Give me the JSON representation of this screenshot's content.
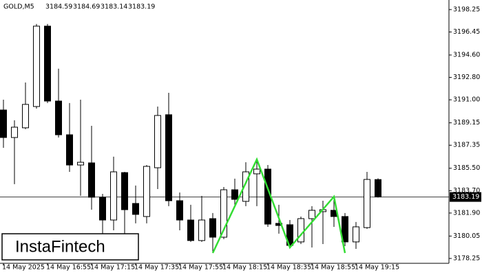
{
  "chart_data": {
    "type": "candlestick",
    "symbol": "GOLD,M5",
    "categories": [
      "14 May 2025",
      null,
      null,
      null,
      "14 May 16:55",
      null,
      null,
      null,
      "14 May 17:15",
      null,
      null,
      null,
      "14 May 17:35",
      null,
      null,
      null,
      "14 May 17:55",
      null,
      null,
      null,
      "14 May 18:15",
      null,
      null,
      null,
      "14 May 18:35",
      null,
      null,
      null,
      "14 May 18:55",
      null,
      null,
      null,
      "14 May 19:15",
      null,
      null
    ],
    "open": [
      3190.18,
      3187.97,
      3188.75,
      3190.46,
      3196.92,
      3190.9,
      3188.19,
      3185.76,
      3185.93,
      3183.17,
      3181.34,
      3185.15,
      3182.67,
      3181.62,
      3185.54,
      3189.8,
      3182.89,
      3181.34,
      3179.69,
      3181.45,
      3179.96,
      3183.77,
      3182.84,
      3185.05,
      3185.43,
      3181.07,
      3180.96,
      3179.58,
      3181.45,
      3182.01,
      3182.12,
      3181.62,
      3179.58,
      3180.73,
      3184.59
    ],
    "high": [
      3191.01,
      3189.35,
      3192.39,
      3197.09,
      3197.09,
      3193.5,
      3190.74,
      3191.01,
      3188.91,
      3183.44,
      3186.43,
      3185.21,
      3184.11,
      3185.76,
      3190.46,
      3191.56,
      3183.55,
      3182.56,
      3183.28,
      3181.9,
      3183.99,
      3184.66,
      3185.98,
      3186.21,
      3185.76,
      3182.56,
      3181.34,
      3181.62,
      3182.45,
      3182.89,
      3183.22,
      3181.9,
      3181.18,
      3185.21,
      3184.69
    ],
    "low": [
      3187.14,
      3184.22,
      3188.64,
      3190.29,
      3190.74,
      3187.97,
      3185.21,
      3183.28,
      3182.17,
      3180.24,
      3180.51,
      3180.24,
      3181.07,
      3181.07,
      3183.83,
      3182.45,
      3180.51,
      3179.58,
      3179.58,
      3178.69,
      3179.8,
      3182.45,
      3182.45,
      3182.45,
      3180.79,
      3180.24,
      3179.13,
      3179.41,
      3179.13,
      3179.41,
      3180.79,
      3179.24,
      3179.02,
      3180.63,
      3183.14
    ],
    "close": [
      3187.97,
      3188.8,
      3190.63,
      3196.92,
      3190.9,
      3188.19,
      3185.76,
      3185.98,
      3183.17,
      3181.34,
      3185.21,
      3182.17,
      3181.79,
      3185.65,
      3189.74,
      3182.89,
      3181.34,
      3179.69,
      3181.34,
      3179.96,
      3183.77,
      3183.0,
      3185.21,
      3185.43,
      3181.01,
      3180.9,
      3179.3,
      3181.45,
      3182.12,
      3182.17,
      3181.62,
      3179.58,
      3180.79,
      3184.6,
      3183.19
    ],
    "color": "#000000",
    "pattern": {
      "color": "#33dd33",
      "index": [
        19,
        23,
        26,
        30,
        31
      ],
      "values": [
        3178.69,
        3186.21,
        3179.13,
        3183.22,
        3178.69
      ]
    },
    "ylim": [
      3177.86,
      3199.02
    ],
    "yticks": [
      3198.25,
      3196.45,
      {
        "value": 3194.6,
        "label": "3194.60"
      },
      {
        "value": 3192.8,
        "label": "3192.80"
      },
      {
        "value": 3191,
        "label": "3191.00"
      },
      3189.15,
      3187.35,
      {
        "value": 3185.5,
        "label": "3185.50"
      },
      {
        "value": 3183.7,
        "label": "3183.70"
      },
      {
        "value": 3181.9,
        "label": "3181.90"
      },
      3180.05,
      3178.25
    ],
    "logo": "InstaFintech"
  }
}
